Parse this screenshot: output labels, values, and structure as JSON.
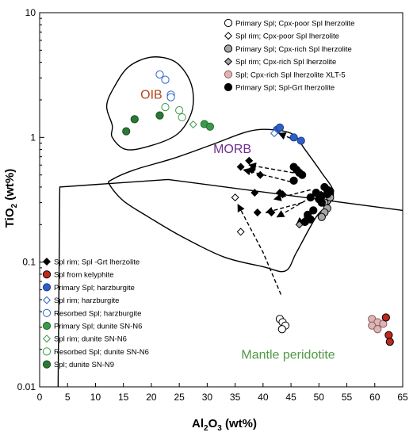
{
  "chart_data": {
    "type": "scatter",
    "xlabel_main": "Al",
    "xlabel_sub": "2",
    "xlabel_mid": "O",
    "xlabel_sub2": "3",
    "xlabel_unit": " (wt%)",
    "ylabel_main": "TiO",
    "ylabel_sub": "2",
    "ylabel_unit": " (wt%)",
    "xlim": [
      0,
      65
    ],
    "ylim": [
      0.01,
      10
    ],
    "y_scale": "log",
    "x_ticks": [
      "0",
      "5",
      "10",
      "15",
      "20",
      "25",
      "30",
      "35",
      "40",
      "45",
      "50",
      "55",
      "60",
      "65"
    ],
    "x_tick_values": [
      0,
      5,
      10,
      15,
      20,
      25,
      30,
      35,
      40,
      45,
      50,
      55,
      60,
      65
    ],
    "y_ticks": [
      "0.01",
      "0.1",
      "1",
      "10"
    ],
    "y_tick_values": [
      0.01,
      0.1,
      1,
      10
    ],
    "grid": false,
    "legend_placement": "top-right and bottom-left",
    "region_labels": [
      {
        "text": "OIB",
        "x": 20.0,
        "y": 2.05,
        "color": "#b8431c"
      },
      {
        "text": "MORB",
        "x": 34.5,
        "y": 0.75,
        "color": "#6f2d91"
      },
      {
        "text": "Mantle peridotite",
        "x": 44.5,
        "y": 0.0168,
        "color": "#4f9a45"
      }
    ],
    "fields": [
      {
        "name": "OIB field",
        "points": [
          [
            13.0,
            1.25
          ],
          [
            12.0,
            1.8
          ],
          [
            13.5,
            2.6
          ],
          [
            16.0,
            3.7
          ],
          [
            20.0,
            4.4
          ],
          [
            24.0,
            4.1
          ],
          [
            26.5,
            3.1
          ],
          [
            27.5,
            2.2
          ],
          [
            27.0,
            1.5
          ],
          [
            24.5,
            1.05
          ],
          [
            20.0,
            0.86
          ],
          [
            15.5,
            0.8
          ],
          [
            13.0,
            1.0
          ],
          [
            13.0,
            1.25
          ]
        ]
      },
      {
        "name": "MORB field",
        "points": [
          [
            12.5,
            0.42
          ],
          [
            15.0,
            0.31
          ],
          [
            19.5,
            0.23
          ],
          [
            25.5,
            0.16
          ],
          [
            33.0,
            0.11
          ],
          [
            40.0,
            0.092
          ],
          [
            44.0,
            0.085
          ],
          [
            46.0,
            0.12
          ],
          [
            49.5,
            0.23
          ],
          [
            52.0,
            0.3
          ],
          [
            52.5,
            0.38
          ],
          [
            50.5,
            0.52
          ],
          [
            47.5,
            0.8
          ],
          [
            45.5,
            1.05
          ],
          [
            42.0,
            1.15
          ],
          [
            37.5,
            1.12
          ],
          [
            31.0,
            0.88
          ],
          [
            24.0,
            0.68
          ],
          [
            17.0,
            0.55
          ],
          [
            13.0,
            0.46
          ],
          [
            12.5,
            0.42
          ]
        ]
      },
      {
        "name": "Mantle peridotite field",
        "points": [
          [
            3.3,
            0.01
          ],
          [
            3.6,
            0.4
          ],
          [
            23.0,
            0.46
          ],
          [
            65.0,
            0.26
          ]
        ]
      }
    ],
    "arrows": [
      [
        [
          43.2,
          0.055
        ],
        [
          40.0,
          0.12
        ],
        [
          35.5,
          0.29
        ]
      ],
      [
        [
          45.5,
          0.52
        ],
        [
          37.5,
          0.6
        ]
      ],
      [
        [
          45.0,
          0.44
        ],
        [
          36.5,
          0.55
        ]
      ],
      [
        [
          50.5,
          0.37
        ],
        [
          42.5,
          0.23
        ]
      ],
      [
        [
          49.5,
          0.27
        ],
        [
          46.0,
          0.2
        ]
      ],
      [
        [
          47.0,
          0.3
        ],
        [
          40.5,
          0.25
        ]
      ],
      [
        [
          48.5,
          0.38
        ],
        [
          42.0,
          0.32
        ]
      ],
      [
        [
          47.0,
          0.9
        ],
        [
          42.8,
          1.08
        ]
      ]
    ],
    "series": [
      {
        "name": "Primary Spl; Cpx-poor Spl lherzolite",
        "marker": "circle",
        "fill": "#ffffff",
        "stroke": "#000000",
        "x": [
          43.0,
          43.5,
          44.0,
          43.4
        ],
        "y": [
          0.035,
          0.033,
          0.031,
          0.029
        ]
      },
      {
        "name": "Spl rim; Cpx-poor Spl lherzolite",
        "marker": "diamond",
        "fill": "#ffffff",
        "stroke": "#000000",
        "x": [
          35.0,
          36.0
        ],
        "y": [
          0.33,
          0.175
        ]
      },
      {
        "name": "Primary Spl; Cpx-rich Spl lherzolite",
        "marker": "circle",
        "fill": "#a6a6a6",
        "stroke": "#000000",
        "x": [
          51.0,
          51.5,
          51.0,
          50.5,
          52.0
        ],
        "y": [
          0.3,
          0.27,
          0.25,
          0.23,
          0.33
        ]
      },
      {
        "name": "Spl rim; Cpx-rich Spl lherzolite",
        "marker": "diamond",
        "fill": "#a6a6a6",
        "stroke": "#000000",
        "x": [
          46.5,
          48.0
        ],
        "y": [
          0.2,
          0.23
        ]
      },
      {
        "name": "Spl; Cpx-rich Spl lherzolite XLT-5",
        "marker": "circle",
        "fill": "#dcb5b5",
        "stroke": "#8c5a5a",
        "x": [
          59.5,
          60.5,
          59.5,
          60.5,
          61.5
        ],
        "y": [
          0.035,
          0.033,
          0.031,
          0.029,
          0.032
        ]
      },
      {
        "name": "Primary Spl; Spl-Grt lherzolite",
        "marker": "circle",
        "fill": "#000000",
        "stroke": "#000000",
        "x": [
          45.5,
          46.0,
          46.5,
          47.0,
          48.5,
          49.5,
          50.0,
          50.5,
          51.0,
          51.5,
          52.0,
          50.5,
          51.5,
          49.0,
          48.5,
          47.5,
          45.5,
          48.0
        ],
        "y": [
          0.58,
          0.55,
          0.52,
          0.5,
          0.33,
          0.36,
          0.32,
          0.3,
          0.4,
          0.38,
          0.37,
          0.34,
          0.35,
          0.26,
          0.22,
          0.21,
          0.45,
          0.24
        ]
      },
      {
        "name": "Spl rim; Spl -Grt lherzolite",
        "marker": "diamond",
        "fill": "#000000",
        "stroke": "#000000",
        "x": [
          37.5,
          36.0,
          38.0,
          39.5,
          38.5,
          39.0,
          43.0,
          43.5,
          41.5
        ],
        "y": [
          0.65,
          0.58,
          0.55,
          0.5,
          0.36,
          0.25,
          0.36,
          0.35,
          0.25
        ]
      },
      {
        "name": "Spl from kelyphite",
        "marker": "circle",
        "fill": "#c0281e",
        "stroke": "#000000",
        "x": [
          62.5,
          62.7,
          62.0
        ],
        "y": [
          0.026,
          0.023,
          0.036
        ]
      },
      {
        "name": "Primary Spl; harzburgite",
        "marker": "circle",
        "fill": "#2e5fc6",
        "stroke": "#1c3f8f",
        "x": [
          42.5,
          45.5,
          46.8,
          43.0
        ],
        "y": [
          1.15,
          1.0,
          0.94,
          1.2
        ]
      },
      {
        "name": "Spl rim; harzburgite",
        "marker": "diamond",
        "fill": "#ffffff",
        "stroke": "#2e5fc6",
        "x": [
          42.0
        ],
        "y": [
          1.08
        ]
      },
      {
        "name": "Resorbed Spl; harzburgite",
        "marker": "circle",
        "fill": "#ffffff",
        "stroke": "#2e5fc6",
        "x": [
          21.5,
          22.5,
          23.5,
          23.5
        ],
        "y": [
          3.2,
          2.9,
          2.2,
          2.1
        ]
      },
      {
        "name": "Primary Spl; dunite SN-N6",
        "marker": "circle",
        "fill": "#3a9a4a",
        "stroke": "#1f6b2c",
        "x": [
          29.5,
          30.5
        ],
        "y": [
          1.28,
          1.22
        ]
      },
      {
        "name": "Spl rim; dunite SN-N6",
        "marker": "diamond",
        "fill": "#ffffff",
        "stroke": "#3a9a4a",
        "x": [
          27.5
        ],
        "y": [
          1.27
        ]
      },
      {
        "name": "Resorbed Spl; dunite SN-N6",
        "marker": "circle",
        "fill": "#ffffff",
        "stroke": "#3a9a4a",
        "x": [
          25.0,
          25.5,
          22.5
        ],
        "y": [
          1.65,
          1.45,
          1.75
        ]
      },
      {
        "name": "Spl; dunite SN-N9",
        "marker": "circle",
        "fill": "#2a7a35",
        "stroke": "#174d1f",
        "x": [
          15.5,
          17.0,
          21.5
        ],
        "y": [
          1.12,
          1.4,
          1.5
        ]
      }
    ],
    "legend_top": [
      "Primary Spl; Cpx-poor Spl lherzolite",
      "Spl rim; Cpx-poor Spl lherzolite",
      "Primary Spl; Cpx-rich Spl lherzolite",
      "Spl rim; Cpx-rich Spl lherzolite",
      "Spl; Cpx-rich Spl lherzolite XLT-5",
      "Primary Spl; Spl-Grt lherzolite"
    ],
    "legend_bottom": [
      "Spl rim; Spl -Grt lherzolite",
      "Spl from kelyphite",
      "Primary Spl; harzburgite",
      "Spl rim; harzburgite",
      "Resorbed Spl; harzburgite",
      "Primary Spl; dunite SN-N6",
      "Spl rim; dunite SN-N6",
      "Resorbed Spl; dunite SN-N6",
      "Spl; dunite SN-N9"
    ]
  }
}
